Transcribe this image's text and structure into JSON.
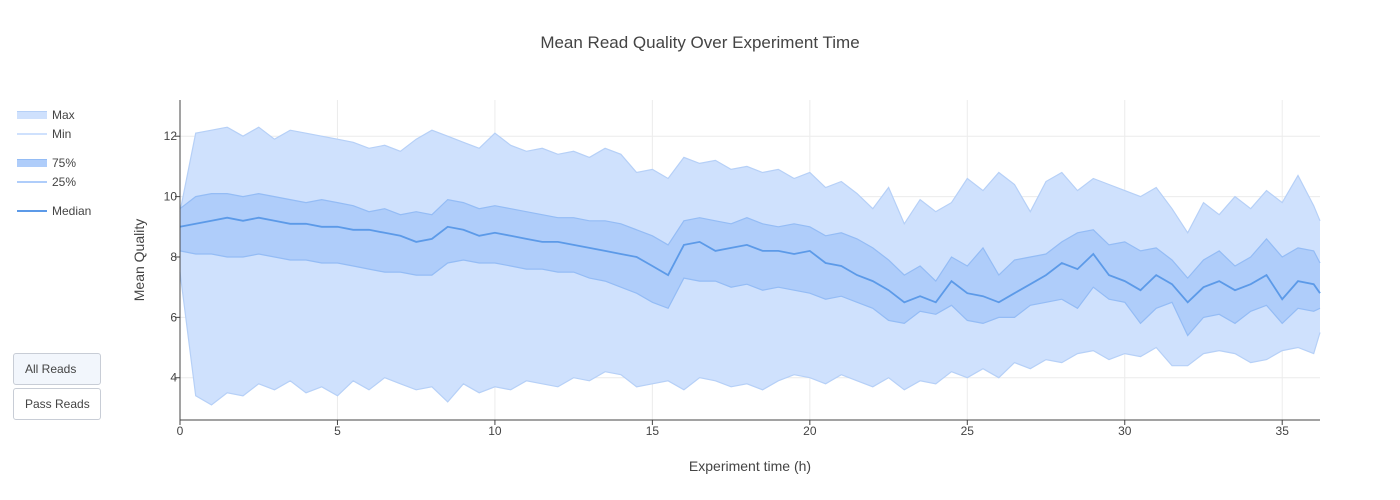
{
  "chart_data": {
    "type": "area",
    "title": "Mean Read Quality Over Experiment Time",
    "xlabel": "Experiment time (h)",
    "ylabel": "Mean Quality",
    "xlim": [
      0,
      36.2
    ],
    "ylim": [
      2.6,
      13.2
    ],
    "xticks": [
      0,
      5,
      10,
      15,
      20,
      25,
      30,
      35
    ],
    "yticks": [
      4,
      6,
      8,
      10,
      12
    ],
    "grid": true,
    "legend_position": "left",
    "x": [
      0,
      0.5,
      1,
      1.5,
      2,
      2.5,
      3,
      3.5,
      4,
      4.5,
      5,
      5.5,
      6,
      6.5,
      7,
      7.5,
      8,
      8.5,
      9,
      9.5,
      10,
      10.5,
      11,
      11.5,
      12,
      12.5,
      13,
      13.5,
      14,
      14.5,
      15,
      15.5,
      16,
      16.5,
      17,
      17.5,
      18,
      18.5,
      19,
      19.5,
      20,
      20.5,
      21,
      21.5,
      22,
      22.5,
      23,
      23.5,
      24,
      24.5,
      25,
      25.5,
      26,
      26.5,
      27,
      27.5,
      28,
      28.5,
      29,
      29.5,
      30,
      30.5,
      31,
      31.5,
      32,
      32.5,
      33,
      33.5,
      34,
      34.5,
      35,
      35.5,
      36,
      36.2
    ],
    "series": [
      {
        "name": "Max",
        "values": [
          9.5,
          12.1,
          12.2,
          12.3,
          12.0,
          12.3,
          11.9,
          12.2,
          12.1,
          12.0,
          11.9,
          11.8,
          11.6,
          11.7,
          11.5,
          11.9,
          12.2,
          12.0,
          11.8,
          11.6,
          12.1,
          11.7,
          11.5,
          11.6,
          11.4,
          11.5,
          11.3,
          11.6,
          11.4,
          10.8,
          10.9,
          10.6,
          11.3,
          11.1,
          11.2,
          10.9,
          11.0,
          10.8,
          10.9,
          10.6,
          10.8,
          10.3,
          10.5,
          10.1,
          9.6,
          10.3,
          9.1,
          9.9,
          9.5,
          9.8,
          10.6,
          10.2,
          10.8,
          10.4,
          9.5,
          10.5,
          10.8,
          10.2,
          10.6,
          10.4,
          10.2,
          10.0,
          10.3,
          9.6,
          8.8,
          9.8,
          9.4,
          10.0,
          9.6,
          10.2,
          9.8,
          10.7,
          9.7,
          9.2
        ]
      },
      {
        "name": "75%",
        "values": [
          9.6,
          10.0,
          10.1,
          10.1,
          10.0,
          10.1,
          10.0,
          9.9,
          9.8,
          9.9,
          9.8,
          9.7,
          9.5,
          9.6,
          9.4,
          9.5,
          9.4,
          9.9,
          9.8,
          9.6,
          9.7,
          9.6,
          9.5,
          9.4,
          9.3,
          9.3,
          9.2,
          9.2,
          9.1,
          8.9,
          8.7,
          8.4,
          9.2,
          9.3,
          9.2,
          9.1,
          9.3,
          9.1,
          9.0,
          9.1,
          9.0,
          8.7,
          8.8,
          8.6,
          8.3,
          7.9,
          7.4,
          7.7,
          7.2,
          8.0,
          7.7,
          8.3,
          7.4,
          7.9,
          8.0,
          8.1,
          8.5,
          8.8,
          8.9,
          8.4,
          8.5,
          8.2,
          8.3,
          7.9,
          7.3,
          7.9,
          8.2,
          7.7,
          8.0,
          8.6,
          8.0,
          8.3,
          8.2,
          7.8
        ]
      },
      {
        "name": "Median",
        "values": [
          9.0,
          9.1,
          9.2,
          9.3,
          9.2,
          9.3,
          9.2,
          9.1,
          9.1,
          9.0,
          9.0,
          8.9,
          8.9,
          8.8,
          8.7,
          8.5,
          8.6,
          9.0,
          8.9,
          8.7,
          8.8,
          8.7,
          8.6,
          8.5,
          8.5,
          8.4,
          8.3,
          8.2,
          8.1,
          8.0,
          7.7,
          7.4,
          8.4,
          8.5,
          8.2,
          8.3,
          8.4,
          8.2,
          8.2,
          8.1,
          8.2,
          7.8,
          7.7,
          7.4,
          7.2,
          6.9,
          6.5,
          6.7,
          6.5,
          7.2,
          6.8,
          6.7,
          6.5,
          6.8,
          7.1,
          7.4,
          7.8,
          7.6,
          8.1,
          7.4,
          7.2,
          6.9,
          7.4,
          7.1,
          6.5,
          7.0,
          7.2,
          6.9,
          7.1,
          7.4,
          6.6,
          7.2,
          7.1,
          6.8
        ]
      },
      {
        "name": "25%",
        "values": [
          8.2,
          8.1,
          8.1,
          8.0,
          8.0,
          8.1,
          8.0,
          7.9,
          7.9,
          7.8,
          7.8,
          7.7,
          7.6,
          7.5,
          7.5,
          7.4,
          7.4,
          7.8,
          7.9,
          7.8,
          7.8,
          7.7,
          7.6,
          7.6,
          7.5,
          7.5,
          7.3,
          7.2,
          7.0,
          6.8,
          6.5,
          6.3,
          7.3,
          7.2,
          7.2,
          7.0,
          7.1,
          6.9,
          7.0,
          6.9,
          6.8,
          6.6,
          6.7,
          6.5,
          6.3,
          5.9,
          5.8,
          6.2,
          6.1,
          6.4,
          5.9,
          5.8,
          6.0,
          6.0,
          6.4,
          6.5,
          6.6,
          6.3,
          7.0,
          6.6,
          6.5,
          5.8,
          6.3,
          6.5,
          5.4,
          6.0,
          6.1,
          5.8,
          6.2,
          6.4,
          5.8,
          6.3,
          6.2,
          6.3
        ]
      },
      {
        "name": "Min",
        "values": [
          7.5,
          3.4,
          3.1,
          3.5,
          3.4,
          3.8,
          3.6,
          3.9,
          3.5,
          3.7,
          3.4,
          3.9,
          3.6,
          4.0,
          3.8,
          3.6,
          3.7,
          3.2,
          3.8,
          3.5,
          3.7,
          3.6,
          3.9,
          3.8,
          3.7,
          4.0,
          3.9,
          4.2,
          4.1,
          3.7,
          3.8,
          3.9,
          3.6,
          4.0,
          3.9,
          3.7,
          3.8,
          3.6,
          3.9,
          4.1,
          4.0,
          3.8,
          4.1,
          3.9,
          3.7,
          4.0,
          3.6,
          3.9,
          3.8,
          4.2,
          4.0,
          4.3,
          4.0,
          4.5,
          4.3,
          4.6,
          4.5,
          4.8,
          4.9,
          4.6,
          4.8,
          4.7,
          5.0,
          4.4,
          4.4,
          4.8,
          4.9,
          4.8,
          4.5,
          4.6,
          4.9,
          5.0,
          4.8,
          5.5
        ]
      }
    ],
    "colors": {
      "outer_band": "#cfe1fd",
      "outer_edge": "#b6d0f7",
      "inner_band": "#afcdfa",
      "inner_edge": "#94bcf5",
      "median_line": "#5c9ae8",
      "grid": "#ececec",
      "axis": "#444444"
    }
  },
  "legend": {
    "items": [
      {
        "label": "Max"
      },
      {
        "label": "Min"
      },
      {
        "label": "75%"
      },
      {
        "label": "25%"
      },
      {
        "label": "Median"
      }
    ]
  },
  "buttons": {
    "all_reads": "All Reads",
    "pass_reads": "Pass Reads"
  }
}
